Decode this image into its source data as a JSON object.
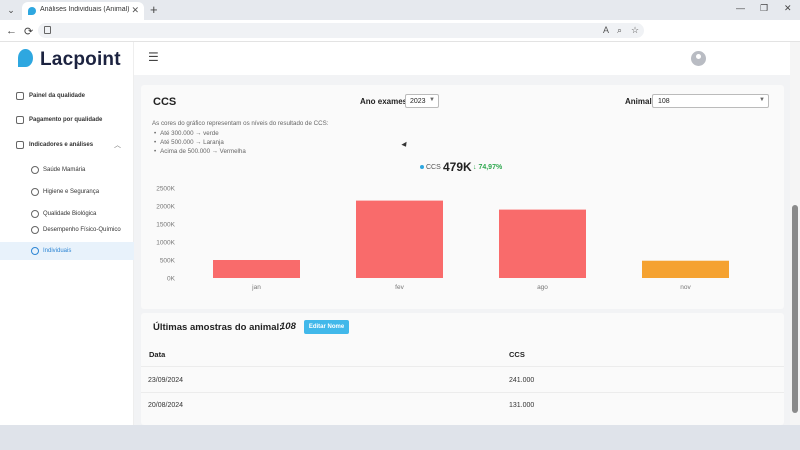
{
  "browser": {
    "tab_title": "Análises Individuais (Animal) - Lacp",
    "tab_close": "✕",
    "new_tab": "+",
    "tab_dropdown": "⌄",
    "window_minimize": "—",
    "window_restore": "❐",
    "window_close": "✕",
    "back": "←",
    "reload": "⟳",
    "translate_icon": "translate-icon",
    "zoom_icon": "zoom-icon",
    "star_icon": "star-icon"
  },
  "app": {
    "brand": "Lacpoint",
    "brand_color": "#2ea7e0",
    "menu_icon": "☰"
  },
  "sidebar": {
    "items": [
      {
        "label": "Painel da qualidade",
        "icon": "chart-panel-icon"
      },
      {
        "label": "Pagamento por qualidade",
        "icon": "payment-grid-icon"
      },
      {
        "label": "Indicadores e análises",
        "icon": "indicators-icon",
        "expanded": true
      }
    ],
    "subitems": [
      {
        "label": "Saúde Mamária",
        "icon": "heart-icon"
      },
      {
        "label": "Higiene e Segurança",
        "icon": "shield-icon"
      },
      {
        "label": "Qualidade Biológica",
        "icon": "trend-icon"
      },
      {
        "label": "Desempenho Físico-Químico",
        "icon": "flask-icon"
      },
      {
        "label": "Individuais",
        "icon": "pie-icon",
        "active": true
      }
    ]
  },
  "filters": {
    "section_title": "CCS",
    "ano_label": "Ano exames",
    "ano_value": "2023",
    "animal_label": "Animal",
    "animal_value": "108"
  },
  "legend": {
    "intro": "As cores do gráfico representam os níveis do resultado de CCS:",
    "items": [
      "Até 300.000 → verde",
      "Até 500.000 → Laranja",
      "Acima de 500.000 → Vermelha"
    ]
  },
  "kpi": {
    "label": "CCS",
    "value": "479K",
    "delta": "↓ 74,97%",
    "delta_color": "#2fa84f"
  },
  "chart_data": {
    "type": "bar",
    "categories": [
      "jan",
      "fev",
      "ago",
      "nov"
    ],
    "values": [
      500000,
      2150000,
      1900000,
      480000
    ],
    "colors": [
      "#f96b6b",
      "#f96b6b",
      "#f96b6b",
      "#f5a230"
    ],
    "ylim": [
      0,
      2500000
    ],
    "yticks": [
      "0K",
      "500K",
      "1000K",
      "1500K",
      "2000K",
      "2500K"
    ],
    "ytick_values": [
      0,
      500000,
      1000000,
      1500000,
      2000000,
      2500000
    ],
    "grid": false
  },
  "samples": {
    "title": "Últimas amostras do animal:",
    "animal": "108",
    "edit_label": "Editar Nome",
    "columns": [
      "Data",
      "CCS"
    ],
    "rows": [
      [
        "23/09/2024",
        "241.000"
      ],
      [
        "20/08/2024",
        "131.000"
      ]
    ]
  }
}
